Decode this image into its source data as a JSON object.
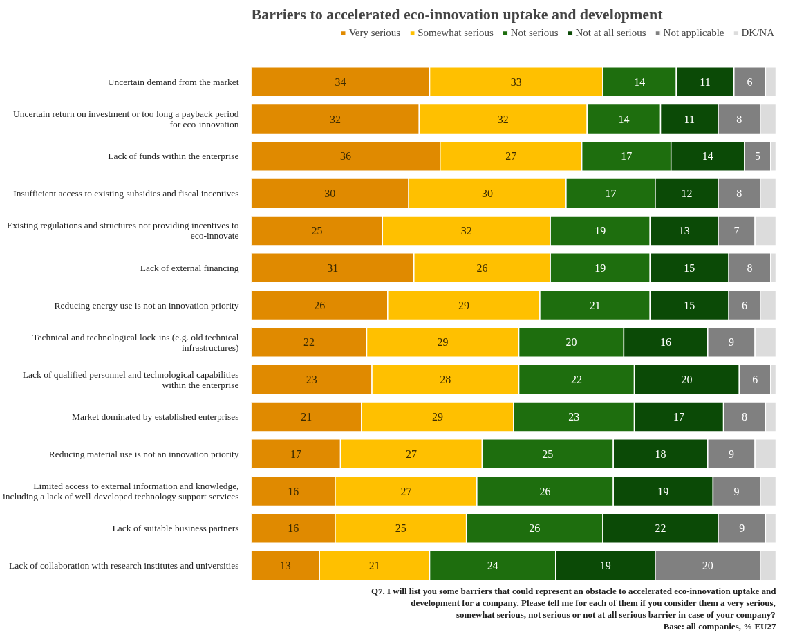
{
  "chart_data": {
    "type": "bar",
    "orientation": "horizontal",
    "stacked": true,
    "title": "Barriers to accelerated eco-innovation uptake and development",
    "categories": [
      "Uncertain demand from the market",
      "Uncertain return on investment or too long a payback period\nfor eco-innovation",
      "Lack of funds within the enterprise",
      "Insufficient access to existing subsidies and fiscal incentives",
      "Existing regulations and structures not providing incentives to\neco-innovate",
      "Lack of external financing",
      "Reducing energy use is not an innovation priority",
      "Technical and technological lock-ins (e.g. old technical\ninfrastructures)",
      "Lack of qualified personnel and technological capabilities\nwithin the enterprise",
      "Market dominated by established enterprises",
      "Reducing material use is not an innovation priority",
      "Limited access to external information and knowledge,\nincluding a lack of well-developed technology support services",
      "Lack of suitable business partners",
      "Lack of collaboration with research institutes and universities"
    ],
    "series": [
      {
        "name": "Very serious",
        "color": "#e08a00",
        "values": [
          34,
          32,
          36,
          30,
          25,
          31,
          26,
          22,
          23,
          21,
          17,
          16,
          16,
          13
        ],
        "value_labels": [
          "34",
          "32",
          "36",
          "30",
          "25",
          "31",
          "26",
          "22",
          "23",
          "21",
          "17",
          "16",
          "16",
          "13"
        ]
      },
      {
        "name": "Somewhat serious",
        "color": "#ffc000",
        "values": [
          33,
          32,
          27,
          30,
          32,
          26,
          29,
          29,
          28,
          29,
          27,
          27,
          25,
          21
        ],
        "value_labels": [
          "33",
          "32",
          "27",
          "30",
          "32",
          "26",
          "29",
          "29",
          "28",
          "29",
          "27",
          "27",
          "25",
          "21"
        ]
      },
      {
        "name": "Not serious",
        "color": "#1e6e0e",
        "values": [
          14,
          14,
          17,
          17,
          19,
          19,
          21,
          20,
          22,
          23,
          25,
          26,
          26,
          24
        ],
        "value_labels": [
          "14",
          "14",
          "17",
          "17",
          "19",
          "19",
          "21",
          "20",
          "22",
          "23",
          "25",
          "26",
          "26",
          "24"
        ]
      },
      {
        "name": "Not at all serious",
        "color": "#0b4a06",
        "values": [
          11,
          11,
          14,
          12,
          13,
          15,
          15,
          16,
          20,
          17,
          18,
          19,
          22,
          19
        ],
        "value_labels": [
          "11",
          "11",
          "14",
          "12",
          "13",
          "15",
          "15",
          "16",
          "20",
          "17",
          "18",
          "19",
          "22",
          "19"
        ]
      },
      {
        "name": "Not applicable",
        "color": "#808080",
        "values": [
          6,
          8,
          5,
          8,
          7,
          8,
          6,
          9,
          6,
          8,
          9,
          9,
          9,
          20
        ],
        "value_labels": [
          "6",
          "8",
          "5",
          "8",
          "7",
          "8",
          "6",
          "9",
          "6",
          "8",
          "9",
          "9",
          "9",
          "20"
        ]
      },
      {
        "name": "DK/NA",
        "color": "#dcdcdc",
        "values": [
          2,
          3,
          1,
          3,
          4,
          1,
          3,
          4,
          1,
          2,
          4,
          3,
          2,
          3
        ]
      }
    ],
    "xlim": [
      0,
      100
    ],
    "tick_labels": "y",
    "legend": "top",
    "grid": false,
    "annotations": [
      "Q7. I will list you some barriers that could represent an obstacle to accelerated eco-innovation uptake and",
      "development for a company. Please tell me for each of them if you consider them a very serious,",
      "somewhat serious, not serious or not at all serious barrier in case of your company?",
      "Base: all companies, % EU27"
    ]
  }
}
